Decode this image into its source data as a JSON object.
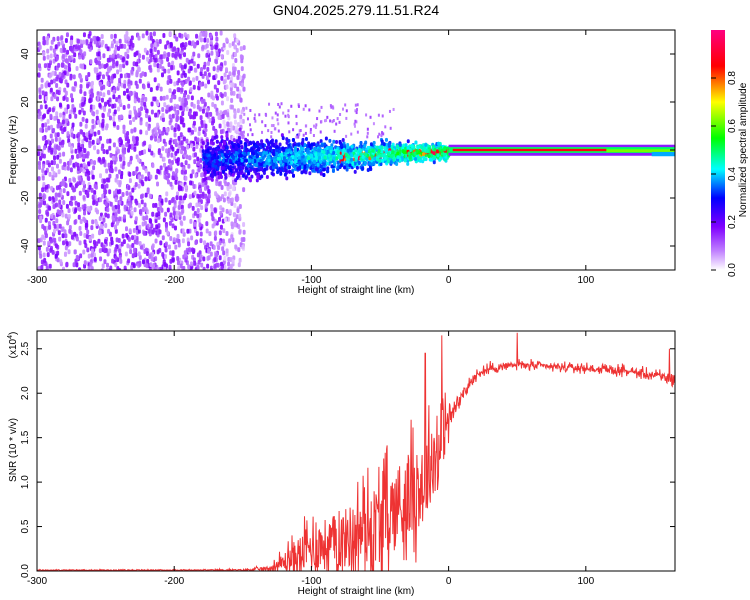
{
  "figure": {
    "title": "GN04.2025.279.11.51.R24"
  },
  "chart_data": [
    {
      "type": "heatmap",
      "title": "GN04.2025.279.11.51.R24",
      "xlabel": "Height of straight line (km)",
      "ylabel": "Frequency (Hz)",
      "xlim": [
        -300,
        165
      ],
      "ylim": [
        -50,
        50
      ],
      "x_ticks": [
        -300,
        -200,
        -100,
        0,
        100
      ],
      "x_tick_labels": [
        "-300",
        "-200",
        "-100",
        "0",
        "100"
      ],
      "y_ticks": [
        -40,
        -20,
        0,
        20,
        40
      ],
      "y_tick_labels": [
        "-40",
        "-20",
        "0",
        "20",
        "40"
      ],
      "colorbar": {
        "label": "Normalized spectral amplitude",
        "range": [
          0,
          1
        ],
        "ticks": [
          0.0,
          0.2,
          0.4,
          0.6,
          0.8
        ],
        "tick_labels": [
          "0.0",
          "0.2",
          "0.4",
          "0.6",
          "0.8"
        ],
        "colors": [
          "#ffffff",
          "#8000ff",
          "#0000ff",
          "#00ffff",
          "#00ff00",
          "#ffff00",
          "#ff0000",
          "#ff0080"
        ]
      },
      "regions": [
        {
          "name": "broadband noise",
          "x_range": [
            -300,
            -150
          ],
          "freq_range": [
            -50,
            50
          ],
          "amplitude": 0.1
        },
        {
          "name": "tapering band",
          "x_range": [
            -175,
            -40
          ],
          "freq_range": [
            -15,
            15
          ],
          "amplitude": 0.35
        },
        {
          "name": "strong tone",
          "x_range": [
            0,
            165
          ],
          "freq_center": 0,
          "amplitude": 0.9
        }
      ]
    },
    {
      "type": "line",
      "xlabel": "Height of straight line (km)",
      "ylabel": "SNR (10 * v/v)",
      "y_scale_label": "(x10",
      "y_scale_exp": "4",
      "y_scale_suffix": ")",
      "xlim": [
        -300,
        165
      ],
      "ylim": [
        0,
        2.7
      ],
      "x_ticks": [
        -300,
        -200,
        -100,
        0,
        100
      ],
      "x_tick_labels": [
        "-300",
        "-200",
        "-100",
        "0",
        "100"
      ],
      "y_ticks": [
        0.0,
        0.5,
        1.0,
        1.5,
        2.0,
        2.5
      ],
      "y_tick_labels": [
        "0.0",
        "0.5",
        "1.0",
        "1.5",
        "2.0",
        "2.5"
      ],
      "color": "#ee3333",
      "series": [
        {
          "name": "SNR",
          "x": [
            -300,
            -250,
            -200,
            -150,
            -130,
            -120,
            -110,
            -100,
            -90,
            -80,
            -70,
            -60,
            -50,
            -40,
            -30,
            -20,
            -10,
            0,
            10,
            20,
            30,
            50,
            70,
            100,
            130,
            150,
            165
          ],
          "mean": [
            0.01,
            0.01,
            0.01,
            0.01,
            0.03,
            0.1,
            0.18,
            0.26,
            0.3,
            0.34,
            0.4,
            0.48,
            0.56,
            0.68,
            0.82,
            0.98,
            1.3,
            1.7,
            2.0,
            2.2,
            2.28,
            2.32,
            2.3,
            2.28,
            2.25,
            2.2,
            2.15
          ],
          "spread": [
            0.005,
            0.005,
            0.005,
            0.01,
            0.03,
            0.12,
            0.22,
            0.28,
            0.32,
            0.36,
            0.4,
            0.45,
            0.5,
            0.52,
            0.54,
            0.52,
            0.45,
            0.3,
            0.18,
            0.12,
            0.1,
            0.1,
            0.09,
            0.09,
            0.1,
            0.12,
            0.15
          ]
        }
      ],
      "peaks": [
        {
          "x": -17,
          "y": 2.45
        },
        {
          "x": -5,
          "y": 2.65
        },
        {
          "x": 50,
          "y": 2.68
        },
        {
          "x": 161,
          "y": 2.5
        }
      ]
    }
  ]
}
